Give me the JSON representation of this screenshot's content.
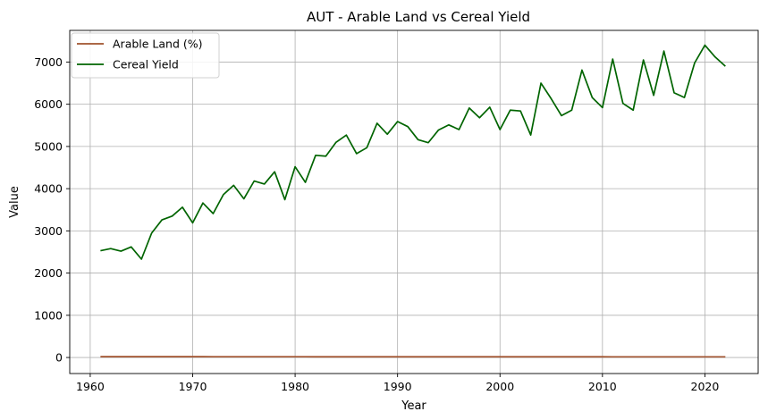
{
  "chart_data": {
    "type": "line",
    "title": "AUT - Arable Land vs Cereal Yield",
    "xlabel": "Year",
    "ylabel": "Value",
    "xlim": [
      1958,
      2025.2
    ],
    "ylim": [
      -380,
      7750
    ],
    "xticks": [
      1960,
      1970,
      1980,
      1990,
      2000,
      2010,
      2020
    ],
    "yticks": [
      0,
      1000,
      2000,
      3000,
      4000,
      5000,
      6000,
      7000
    ],
    "grid": true,
    "legend_position": "upper-left",
    "x": [
      1961,
      1962,
      1963,
      1964,
      1965,
      1966,
      1967,
      1968,
      1969,
      1970,
      1971,
      1972,
      1973,
      1974,
      1975,
      1976,
      1977,
      1978,
      1979,
      1980,
      1981,
      1982,
      1983,
      1984,
      1985,
      1986,
      1987,
      1988,
      1989,
      1990,
      1991,
      1992,
      1993,
      1994,
      1995,
      1996,
      1997,
      1998,
      1999,
      2000,
      2001,
      2002,
      2003,
      2004,
      2005,
      2006,
      2007,
      2008,
      2009,
      2010,
      2011,
      2012,
      2013,
      2014,
      2015,
      2016,
      2017,
      2018,
      2019,
      2020,
      2021,
      2022
    ],
    "series": [
      {
        "name": "Arable Land (%)",
        "color": "#a0522d",
        "values": [
          19.8,
          19.7,
          19.6,
          19.5,
          19.4,
          19.3,
          19.2,
          19.1,
          19.0,
          18.9,
          18.8,
          18.7,
          18.6,
          18.5,
          18.4,
          18.3,
          18.2,
          18.1,
          18.0,
          17.9,
          17.8,
          17.7,
          17.6,
          17.5,
          17.4,
          17.3,
          17.2,
          17.1,
          17.0,
          17.0,
          16.9,
          16.9,
          16.8,
          16.8,
          16.8,
          16.7,
          16.7,
          16.7,
          16.6,
          16.6,
          16.6,
          16.5,
          16.5,
          16.5,
          16.4,
          16.4,
          16.4,
          16.3,
          16.3,
          16.3,
          16.2,
          16.2,
          16.2,
          16.1,
          16.1,
          16.1,
          16.0,
          16.0,
          16.0,
          15.9,
          15.9,
          15.9
        ]
      },
      {
        "name": "Cereal Yield",
        "color": "#006400",
        "values": [
          2530,
          2580,
          2520,
          2620,
          2330,
          2950,
          3260,
          3350,
          3560,
          3190,
          3660,
          3410,
          3860,
          4080,
          3760,
          4180,
          4110,
          4400,
          3740,
          4520,
          4150,
          4790,
          4770,
          5100,
          5270,
          4830,
          4970,
          5550,
          5290,
          5590,
          5470,
          5160,
          5090,
          5390,
          5510,
          5400,
          5910,
          5680,
          5930,
          5400,
          5860,
          5840,
          5270,
          6500,
          6130,
          5730,
          5860,
          6810,
          6160,
          5920,
          7070,
          6020,
          5860,
          7050,
          6210,
          7260,
          6270,
          6160,
          6980,
          7400,
          7120,
          6900
        ]
      }
    ]
  }
}
